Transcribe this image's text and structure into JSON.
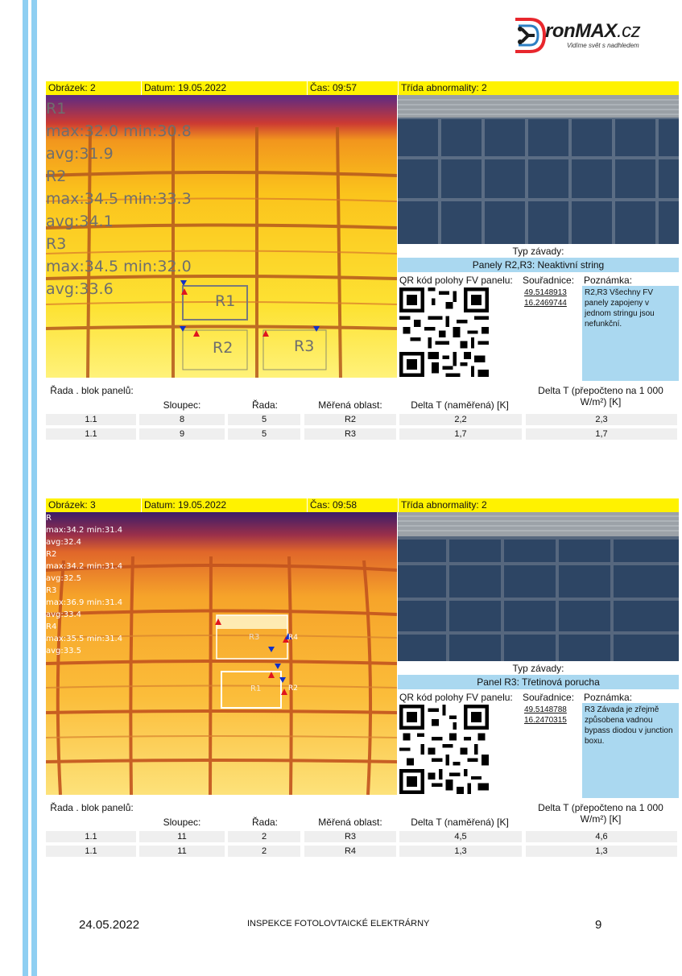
{
  "brand": {
    "name_part1": "ronMAX",
    "name_part2": ".cz",
    "slogan": "Vidíme svět s nadhledem"
  },
  "reports": [
    {
      "header": {
        "image": "Obrázek: 2",
        "date": "Datum: 19.05.2022",
        "time": "Čas: 09:57",
        "class": "Třída abnormality: 2"
      },
      "thermal_overlay": [
        "R1",
        "max:32.0     min:30.8",
        "avg:31.9",
        "R2",
        "max:34.5     min:33.3",
        "avg:34.1",
        "R3",
        "max:34.5     min:32.0",
        "avg:33.6"
      ],
      "region_labels": [
        "R1",
        "R2",
        "R3"
      ],
      "defect_type_label": "Typ závady:",
      "defect_type": "Panely R2,R3: Neaktivní string",
      "qr_label": "QR kód polohy FV panelu:",
      "coords_label": "Souřadnice:",
      "note_label": "Poznámka:",
      "lat": "49.5148913",
      "lon": "16.2469744",
      "note": "R2,R3 Všechny FV panely zapojeny v jednom stringu jsou nefunkční.",
      "table_headers": [
        "Řada . blok panelů:",
        "Sloupec:",
        "Řada:",
        "Měřená oblast:",
        "Delta T (naměřená) [K]",
        "Delta T (přepočteno na 1 000 W/m²) [K]"
      ],
      "rows": [
        [
          "1.1",
          "8",
          "5",
          "R2",
          "2,2",
          "2,3"
        ],
        [
          "1.1",
          "9",
          "5",
          "R3",
          "1,7",
          "1,7"
        ]
      ]
    },
    {
      "header": {
        "image": "Obrázek: 3",
        "date": "Datum: 19.05.2022",
        "time": "Čas: 09:58",
        "class": "Třída abnormality: 2"
      },
      "thermal_overlay": [
        "R",
        "max:34.2     min:31.4",
        "avg:32.4",
        "R2",
        "max:34.2     min:31.4",
        "avg:32.5",
        "R3",
        "max:36.9     min:31.4",
        "avg:33.4",
        "R4",
        "max:35.5     min:31.4",
        "avg:33.5"
      ],
      "region_labels": [
        "R3",
        "R1",
        "R4",
        "R2"
      ],
      "defect_type_label": "Typ závady:",
      "defect_type": "Panel R3: Třetinová porucha",
      "qr_label": "QR kód polohy FV panelu:",
      "coords_label": "Souřadnice:",
      "note_label": "Poznámka:",
      "lat": "49.5148788",
      "lon": "16.2470315",
      "note": "R3 Závada je zřejmě způsobena vadnou bypass diodou v junction boxu.",
      "table_headers": [
        "Řada . blok panelů:",
        "Sloupec:",
        "Řada:",
        "Měřená oblast:",
        "Delta T (naměřená) [K]",
        "Delta T (přepočteno na 1 000 W/m²) [K]"
      ],
      "rows": [
        [
          "1.1",
          "11",
          "2",
          "R3",
          "4,5",
          "4,6"
        ],
        [
          "1.1",
          "11",
          "2",
          "R4",
          "1,3",
          "1,3"
        ]
      ]
    }
  ],
  "footer": {
    "date": "24.05.2022",
    "title": "INSPEKCE FOTOLOVTAICKÉ ELEKTRÁRNY",
    "page": "9"
  },
  "colors": {
    "header_yellow": "#fff200",
    "accent_blue": "#aad8f0",
    "side_bar": "#8fcff2",
    "logo_red": "#e8272d",
    "logo_blue": "#2d7fc3"
  }
}
